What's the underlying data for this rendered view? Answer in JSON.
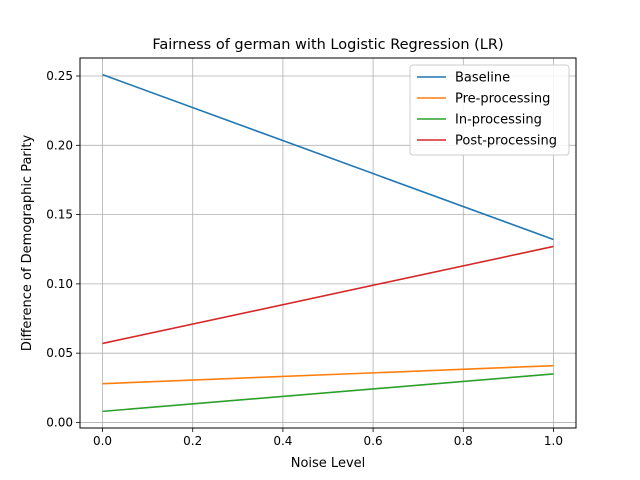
{
  "chart_data": {
    "type": "line",
    "title": "Fairness of german with Logistic Regression (LR)",
    "xlabel": "Noise Level",
    "ylabel": "Difference of Demographic Parity",
    "xlim": [
      -0.05,
      1.05
    ],
    "ylim": [
      -0.004,
      0.263
    ],
    "xticks": [
      0.0,
      0.2,
      0.4,
      0.6,
      0.8,
      1.0
    ],
    "xtick_labels": [
      "0.0",
      "0.2",
      "0.4",
      "0.6",
      "0.8",
      "1.0"
    ],
    "yticks": [
      0.0,
      0.05,
      0.1,
      0.15,
      0.2,
      0.25
    ],
    "ytick_labels": [
      "0.00",
      "0.05",
      "0.10",
      "0.15",
      "0.20",
      "0.25"
    ],
    "grid": true,
    "legend_position": "top-right",
    "x": [
      0.0,
      1.0
    ],
    "series": [
      {
        "name": "Baseline",
        "color": "#1f77b4",
        "values": [
          0.251,
          0.132
        ]
      },
      {
        "name": "Pre-processing",
        "color": "#ff7f0e",
        "values": [
          0.028,
          0.041
        ]
      },
      {
        "name": "In-processing",
        "color": "#2ca02c",
        "values": [
          0.008,
          0.035
        ]
      },
      {
        "name": "Post-processing",
        "color": "#d62728",
        "values": [
          0.057,
          0.127
        ]
      }
    ]
  }
}
